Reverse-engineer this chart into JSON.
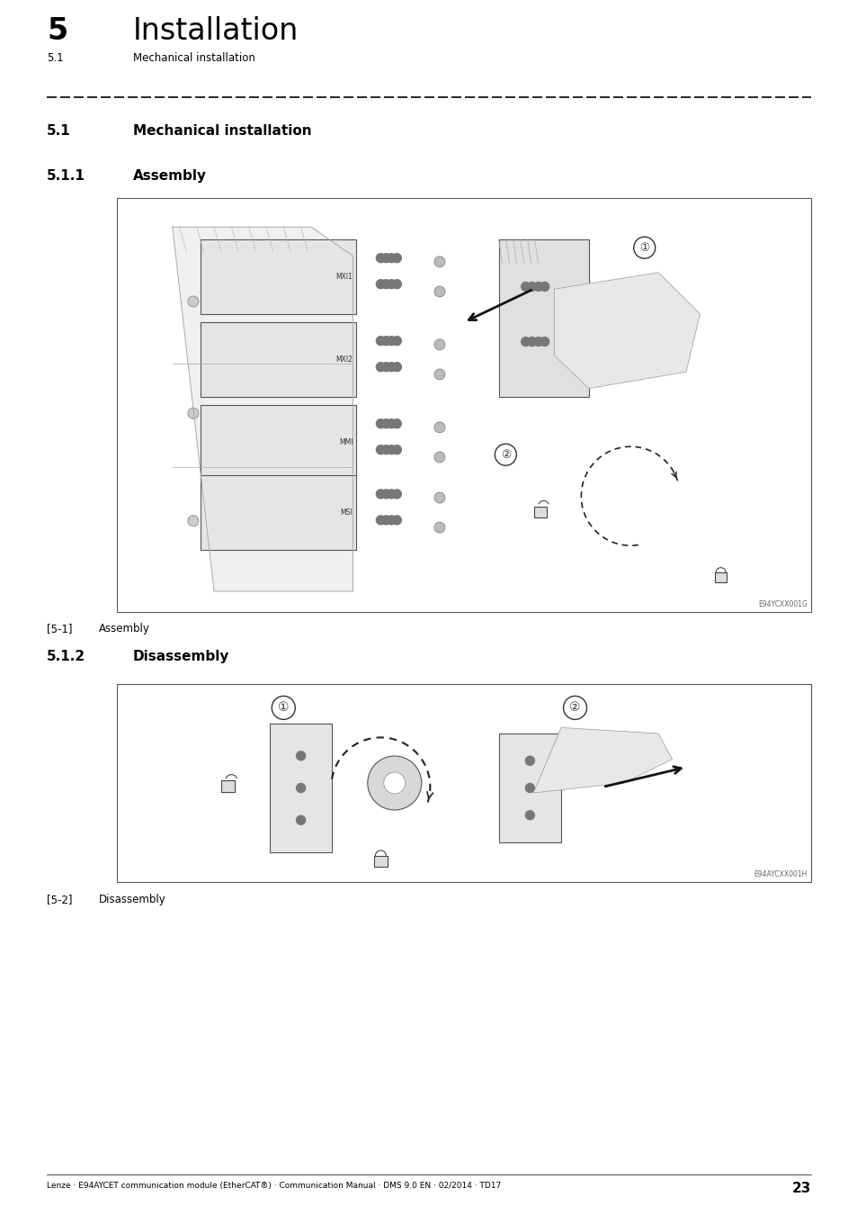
{
  "page_width": 9.54,
  "page_height": 13.5,
  "bg_color": "#ffffff",
  "chapter_number": "5",
  "chapter_title": "Installation",
  "breadcrumb_section": "5.1",
  "breadcrumb_text": "Mechanical installation",
  "section_51_label": "5.1",
  "section_51_title": "Mechanical installation",
  "section_511_label": "5.1.1",
  "section_511_title": "Assembly",
  "section_512_label": "5.1.2",
  "section_512_title": "Disassembly",
  "fig1_caption_label": "[5-1]",
  "fig1_caption_text": "Assembly",
  "fig1_ref": "E94YCXX001G",
  "fig2_caption_label": "[5-2]",
  "fig2_caption_text": "Disassembly",
  "fig2_ref": "E94AYCXX001H",
  "footer_text": "Lenze · E94AYCET communication module (EtherCAT®) · Communication Manual · DMS 9.0 EN · 02/2014 · TD17",
  "footer_page": "23"
}
